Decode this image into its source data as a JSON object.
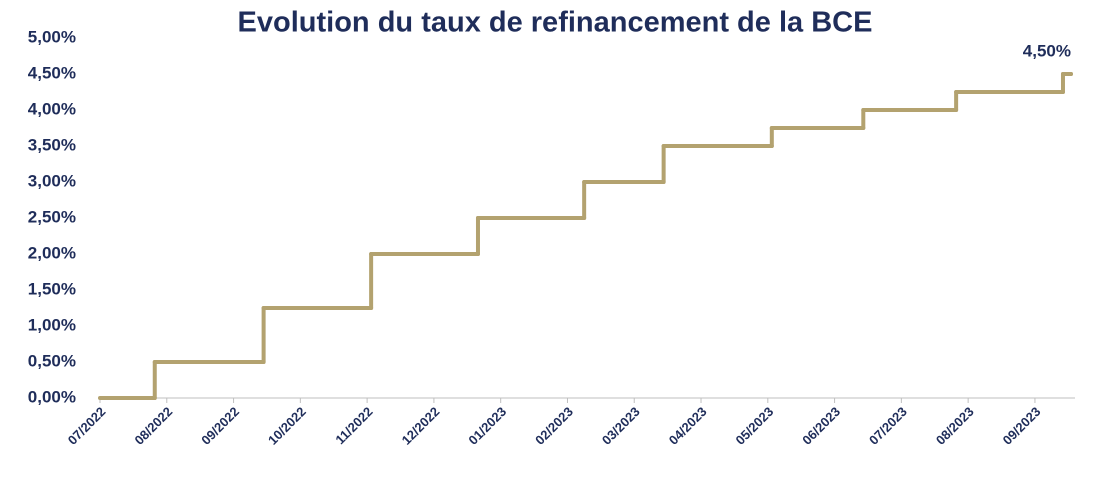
{
  "chart_data": {
    "type": "line",
    "step": "post",
    "title": "Evolution du taux de refinancement de la BCE",
    "x": [
      0,
      0.82,
      2.45,
      4.06,
      5.66,
      7.25,
      8.44,
      10.06,
      11.43,
      12.82,
      14.42,
      14.54
    ],
    "series": [
      {
        "color": "#b3a26f",
        "values": [
          0,
          0.5,
          1.25,
          2,
          2.5,
          3,
          3.5,
          3.75,
          4,
          4.25,
          4.5,
          4.5
        ]
      }
    ],
    "annotations": [
      {
        "text": "4,50%",
        "x": 14.54,
        "y": 4.5
      }
    ],
    "xlim": [
      0,
      14.6
    ],
    "xticks": [
      {
        "value": 0,
        "label": "07/2022"
      },
      {
        "value": 1,
        "label": "08/2022"
      },
      {
        "value": 2,
        "label": "09/2022"
      },
      {
        "value": 3,
        "label": "10/2022"
      },
      {
        "value": 4,
        "label": "11/2022"
      },
      {
        "value": 5,
        "label": "12/2022"
      },
      {
        "value": 6,
        "label": "01/2023"
      },
      {
        "value": 7,
        "label": "02/2023"
      },
      {
        "value": 8,
        "label": "03/2023"
      },
      {
        "value": 9,
        "label": "04/2023"
      },
      {
        "value": 10,
        "label": "05/2023"
      },
      {
        "value": 11,
        "label": "06/2023"
      },
      {
        "value": 12,
        "label": "07/2023"
      },
      {
        "value": 13,
        "label": "08/2023"
      },
      {
        "value": 14,
        "label": "09/2023"
      }
    ],
    "ylim": [
      0,
      5
    ],
    "yticks": [
      {
        "value": 0,
        "label": "0,00%"
      },
      {
        "value": 0.5,
        "label": "0,50%"
      },
      {
        "value": 1,
        "label": "1,00%"
      },
      {
        "value": 1.5,
        "label": "1,50%"
      },
      {
        "value": 2,
        "label": "2,00%"
      },
      {
        "value": 2.5,
        "label": "2,50%"
      },
      {
        "value": 3,
        "label": "3,00%"
      },
      {
        "value": 3.5,
        "label": "3,50%"
      },
      {
        "value": 4,
        "label": "4,00%"
      },
      {
        "value": 4.5,
        "label": "4,50%"
      },
      {
        "value": 5,
        "label": "5,00%"
      }
    ],
    "grid": false
  }
}
